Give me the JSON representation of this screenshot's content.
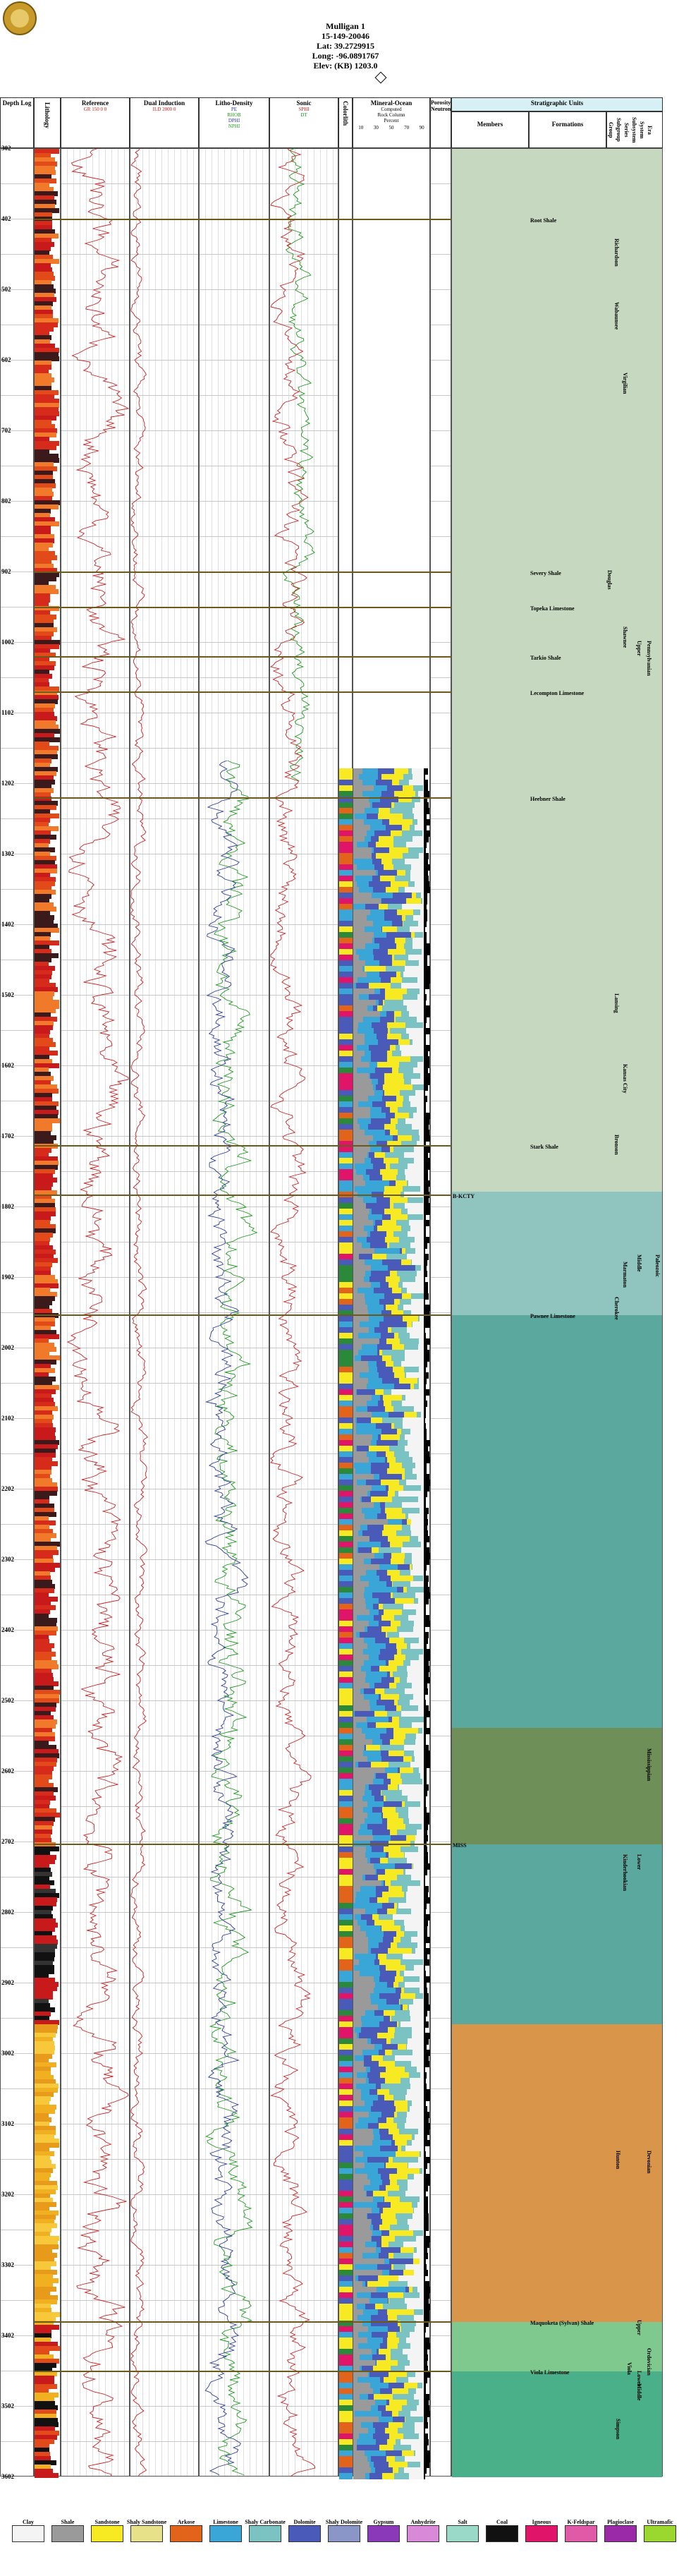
{
  "header": {
    "well_name": "Mulligan 1",
    "api": "15-149-20046",
    "lat": "Lat: 39.2729915",
    "long": "Long: -96.0891767",
    "elev": "Elev: (KB) 1203.0"
  },
  "columns": {
    "depth": "Depth Log",
    "lithology": "Lithology",
    "reference": "Reference",
    "reference_curve": "GR",
    "reference_scale": "150 0 0",
    "dual_induction": "Dual Induction",
    "dual_induction_curve": "ILD",
    "dual_induction_scale": "2000 0",
    "litho_density": "Litho-Density",
    "litho_density_curves": [
      "PE",
      "RHOB",
      "DPHI",
      "NPHI"
    ],
    "sonic": "Sonic",
    "sonic_curves": [
      "DT",
      "SPHI"
    ],
    "colorlith": "Colorlith",
    "mineral_oil": "Mineral-Ocean",
    "mineral_sub": [
      "Computed",
      "Rock Column",
      "Percent"
    ],
    "mineral_scale": [
      "10",
      "30",
      "50",
      "70",
      "90"
    ],
    "porosity": "Porosity Neutron",
    "strat": "Stratigraphic Units",
    "members": "Members",
    "formations": "Formations",
    "strat_cols": [
      "Group",
      "Subgroup",
      "Series",
      "Subsystem",
      "System",
      "Era"
    ]
  },
  "depths": [
    "302",
    "402",
    "502",
    "602",
    "702",
    "802",
    "902",
    "1002",
    "1102",
    "1202",
    "1302",
    "1402",
    "1502",
    "1602",
    "1702",
    "1802",
    "1902",
    "2002",
    "2102",
    "2202",
    "2302",
    "2402",
    "2502",
    "2602",
    "2702",
    "2802",
    "2902",
    "3002",
    "3102",
    "3202",
    "3302",
    "3402",
    "3502",
    "3602"
  ],
  "formations": [
    {
      "name": "Root Shale",
      "depth": 402
    },
    {
      "name": "Severy Shale",
      "depth": 902
    },
    {
      "name": "Topeka Limestone",
      "depth": 952
    },
    {
      "name": "Tarkio Shale",
      "depth": 1022
    },
    {
      "name": "Lecompton Limestone",
      "depth": 1072
    },
    {
      "name": "Heebner Shale",
      "depth": 1222
    },
    {
      "name": "Stark Shale",
      "depth": 1715
    },
    {
      "name": "B-KCTY",
      "depth": 1785
    },
    {
      "name": "Pawnee Limestone",
      "depth": 1955
    },
    {
      "name": "MISS",
      "depth": 2705
    },
    {
      "name": "Maquoketa (Sylvan) Shale",
      "depth": 3382
    },
    {
      "name": "Viola Limestone",
      "depth": 3452
    }
  ],
  "strat_labels": {
    "groups": [
      "Richardson",
      "Wabaunsee",
      "Virgilian",
      "Shawnee",
      "Douglas",
      "Lansing",
      "Kansas City",
      "Bronson",
      "Marmaton",
      "Cherokee",
      "Kinderhookian",
      "Hunton",
      "Viola",
      "Simpson"
    ],
    "series": [
      "Upper",
      "Middle",
      "Lower",
      "Upper",
      "Lower",
      "Middle"
    ],
    "systems": [
      "Pennsylvanian",
      "Mississippian",
      "Devonian",
      "Ordovician"
    ],
    "era": "Paleozoic"
  },
  "legend": [
    "Clay",
    "Shale",
    "Sandstone",
    "Shaly Sandstone",
    "Arkose",
    "Limestone",
    "Shaly Carbonate",
    "Dolomite",
    "Shaly Dolomite",
    "Gypsum",
    "Anhydrite",
    "Salt",
    "Coal",
    "Igneous",
    "K-Feldspar",
    "Plagioclase",
    "Ultramafic"
  ],
  "colors": {
    "clay": "#f4f4f4",
    "shale": "#9a9a9a",
    "sandstone": "#f7ea22",
    "shaly_sandstone": "#e7e18a",
    "arkose": "#e2631a",
    "limestone": "#3aa6d8",
    "shaly_carbonate": "#7bc3c3",
    "dolomite": "#4a5ab8",
    "shaly_dolomite": "#8a96c8",
    "gypsum": "#8a3ab8",
    "anhydrite": "#d88ad8",
    "salt": "#9ad8c8",
    "coal": "#111111",
    "igneous": "#e0156a",
    "kfeld": "#e05aa8",
    "plag": "#9a2aa8",
    "ultra": "#9ad830",
    "gr": "#cc2222",
    "ild": "#cc2222",
    "pe": "#2a3a9a",
    "nphi": "#1a9a1a",
    "dt": "#1a9a1a",
    "sphi": "#cc2222",
    "band_upper": "#c6d9c0",
    "band_teal": "#8fc4bf",
    "band_green": "#5aa89e",
    "band_brown": "#6f8f58",
    "band_orange": "#d9954a",
    "band_lightgreen": "#7fc98f",
    "band_deepgreen": "#4ab08a"
  }
}
